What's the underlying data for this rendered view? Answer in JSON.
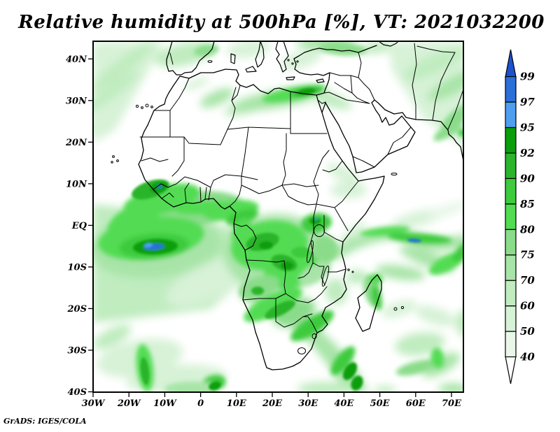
{
  "title": {
    "text": "Relative humidity at 500hPa [%], VT: 2021032200",
    "variable": "Relative humidity",
    "level": "500hPa",
    "unit": "%",
    "valid_time": "2021032200"
  },
  "credit": "GrADS: IGES/COLA",
  "axes": {
    "lat_ticks": [
      {
        "label": "40N",
        "lat": 40
      },
      {
        "label": "30N",
        "lat": 30
      },
      {
        "label": "20N",
        "lat": 20
      },
      {
        "label": "10N",
        "lat": 10
      },
      {
        "label": "EQ",
        "lat": 0
      },
      {
        "label": "10S",
        "lat": -10
      },
      {
        "label": "20S",
        "lat": -20
      },
      {
        "label": "30S",
        "lat": -30
      },
      {
        "label": "40S",
        "lat": -40
      }
    ],
    "lon_ticks": [
      {
        "label": "30W",
        "lon": -30
      },
      {
        "label": "20W",
        "lon": -20
      },
      {
        "label": "10W",
        "lon": -10
      },
      {
        "label": "0",
        "lon": 0
      },
      {
        "label": "10E",
        "lon": 10
      },
      {
        "label": "20E",
        "lon": 20
      },
      {
        "label": "30E",
        "lon": 30
      },
      {
        "label": "40E",
        "lon": 40
      },
      {
        "label": "50E",
        "lon": 50
      },
      {
        "label": "60E",
        "lon": 60
      },
      {
        "label": "70E",
        "lon": 70
      }
    ]
  },
  "colorbar": {
    "levels": [
      "40",
      "50",
      "60",
      "70",
      "75",
      "80",
      "85",
      "90",
      "92",
      "95",
      "97",
      "99"
    ],
    "segment_colors": [
      "#e9f7e9",
      "#d7f2d7",
      "#c0ecc0",
      "#a8e4a8",
      "#8adc8a",
      "#52dc52",
      "#3ecb3e",
      "#2cb42c",
      "#0a9e0a",
      "#4f9ff0",
      "#2b6fd9"
    ],
    "over_color": "#1c52cb",
    "under_color": "#ffffff"
  }
}
